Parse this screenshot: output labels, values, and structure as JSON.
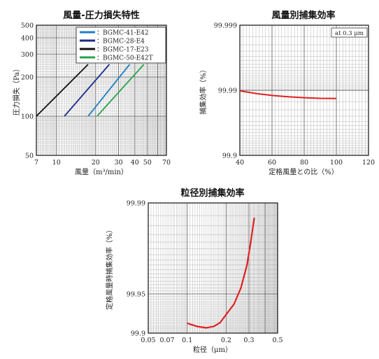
{
  "chart_data": [
    {
      "type": "line",
      "title": "風量-圧力損失特性",
      "xlabel": "風量（m³/min）",
      "ylabel": "圧力損失（Pa）",
      "xscale": "log",
      "yscale": "log",
      "xlim": [
        7,
        70
      ],
      "ylim": [
        50,
        500
      ],
      "xticks": [
        7,
        10,
        20,
        30,
        40,
        50,
        70
      ],
      "yticks": [
        50,
        100,
        200,
        300,
        400,
        500
      ],
      "grid": true,
      "legend_position": "top-right",
      "series": [
        {
          "name": "：BGMC-41-E42",
          "color": "#1f7fc4",
          "x": [
            17.5,
            36.5
          ],
          "y": [
            100,
            250
          ]
        },
        {
          "name": "：BGMC-28-E4",
          "color": "#1b2a8a",
          "x": [
            11.5,
            25.5
          ],
          "y": [
            100,
            250
          ]
        },
        {
          "name": "：BGMC-17-E23",
          "color": "#111111",
          "x": [
            7,
            17.5
          ],
          "y": [
            100,
            250
          ]
        },
        {
          "name": "：BGMC-50-E42T",
          "color": "#2aa34a",
          "x": [
            20.5,
            47.0
          ],
          "y": [
            100,
            250
          ]
        }
      ]
    },
    {
      "type": "line",
      "title": "風量別捕集効率",
      "xlabel": "定格風量との比（%）",
      "ylabel": "捕集効率（%）",
      "xlim": [
        40,
        120
      ],
      "xticks": [
        40,
        60,
        80,
        100,
        120
      ],
      "yticks": [
        "99.9",
        "99.99",
        "99.999"
      ],
      "yscale": "penetration-log",
      "annotation": "at 0.3 μm",
      "grid": true,
      "series": [
        {
          "color": "#e02020",
          "x": [
            40,
            50,
            60,
            70,
            80,
            90,
            100
          ],
          "y": [
            99.9898,
            99.9888,
            99.988,
            99.9874,
            99.987,
            99.9867,
            99.9866
          ]
        }
      ]
    },
    {
      "type": "line",
      "title": "粒径別捕集効率",
      "xlabel": "粒径（μm）",
      "ylabel": "定格風量時捕集効率（%）",
      "xscale": "log",
      "xlim": [
        0.05,
        0.5
      ],
      "xticks": [
        "0.05",
        "0.07",
        "0.1",
        "0.2",
        "0.3",
        "0.5"
      ],
      "yticks": [
        "99.9",
        "99.95",
        "99.99"
      ],
      "yscale": "penetration-log",
      "grid": true,
      "series": [
        {
          "color": "#e02020",
          "x": [
            0.1,
            0.12,
            0.14,
            0.16,
            0.18,
            0.2,
            0.23,
            0.26,
            0.29,
            0.31,
            0.33
          ],
          "y": [
            99.916,
            99.911,
            99.909,
            99.911,
            99.917,
            99.928,
            99.94,
            99.955,
            99.97,
            99.98,
            99.987
          ]
        }
      ]
    }
  ]
}
